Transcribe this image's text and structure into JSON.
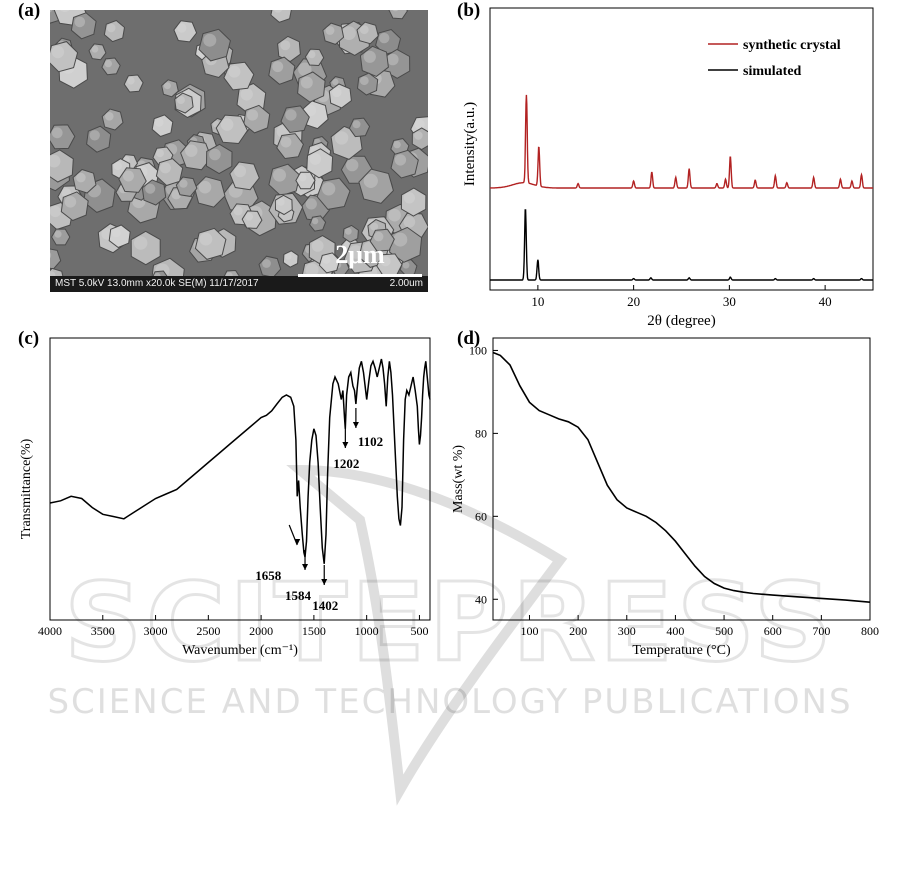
{
  "panels": {
    "a": {
      "label": "(a)",
      "sem_info": "MST 5.0kV 13.0mm x20.0k SE(M) 11/17/2017",
      "scale_small": "2.00um",
      "scale_label": "2μm"
    },
    "b": {
      "label": "(b)"
    },
    "c": {
      "label": "(c)"
    },
    "d": {
      "label": "(d)"
    }
  },
  "watermark": {
    "brand": "SCITEPRESS",
    "subtitle": "SCIENCE AND TECHNOLOGY PUBLICATIONS"
  },
  "chart_data": [
    {
      "panel": "b",
      "type": "line",
      "xlabel": "2θ (degree)",
      "ylabel": "Intensity(a.u.)",
      "xlim": [
        5,
        45
      ],
      "xticks": [
        10,
        20,
        30,
        40
      ],
      "y_ticks_shown": false,
      "legend_position": "top-right",
      "series": [
        {
          "name": "synthetic crystal",
          "color": "#b22222",
          "baseline": 0.18,
          "peaks": [
            [
              8.8,
              1.0
            ],
            [
              10.1,
              0.45
            ],
            [
              14.2,
              0.05
            ],
            [
              20.0,
              0.08
            ],
            [
              21.9,
              0.18
            ],
            [
              24.4,
              0.12
            ],
            [
              25.8,
              0.22
            ],
            [
              28.7,
              0.05
            ],
            [
              29.6,
              0.1
            ],
            [
              30.1,
              0.36
            ],
            [
              32.7,
              0.09
            ],
            [
              34.8,
              0.14
            ],
            [
              36.0,
              0.06
            ],
            [
              38.8,
              0.12
            ],
            [
              41.6,
              0.1
            ],
            [
              42.8,
              0.08
            ],
            [
              43.8,
              0.15
            ]
          ]
        },
        {
          "name": "simulated",
          "color": "#000000",
          "baseline": 0.0,
          "peaks": [
            [
              8.7,
              1.0
            ],
            [
              10.0,
              0.28
            ],
            [
              20.0,
              0.02
            ],
            [
              21.8,
              0.03
            ],
            [
              25.8,
              0.03
            ],
            [
              30.1,
              0.04
            ],
            [
              34.8,
              0.02
            ],
            [
              38.8,
              0.02
            ],
            [
              43.8,
              0.02
            ]
          ]
        }
      ]
    },
    {
      "panel": "c",
      "type": "line",
      "xlabel": "Wavenumber (cm⁻¹)",
      "ylabel": "Transmittance(%)",
      "xlim": [
        4000,
        400
      ],
      "xticks": [
        4000,
        3500,
        3000,
        2500,
        2000,
        1500,
        1000,
        500
      ],
      "y_ticks_shown": false,
      "series": [
        {
          "name": "",
          "x": [
            4000,
            3900,
            3800,
            3700,
            3600,
            3500,
            3400,
            3300,
            3200,
            3100,
            3000,
            2900,
            2800,
            2700,
            2600,
            2500,
            2400,
            2300,
            2200,
            2100,
            2000,
            1950,
            1900,
            1850,
            1800,
            1760,
            1720,
            1690,
            1670,
            1658,
            1645,
            1630,
            1610,
            1595,
            1584,
            1570,
            1555,
            1540,
            1520,
            1500,
            1480,
            1460,
            1440,
            1420,
            1402,
            1385,
            1370,
            1350,
            1320,
            1300,
            1270,
            1240,
            1225,
            1210,
            1202,
            1190,
            1170,
            1150,
            1130,
            1115,
            1102,
            1090,
            1070,
            1050,
            1030,
            1015,
            1000,
            980,
            960,
            940,
            920,
            900,
            880,
            860,
            845,
            830,
            815,
            800,
            785,
            770,
            755,
            740,
            725,
            710,
            695,
            680,
            665,
            650,
            635,
            620,
            600,
            580,
            560,
            540,
            520,
            510,
            500,
            490,
            480,
            470,
            460,
            450,
            440,
            430,
            420,
            410,
            400
          ],
          "y": [
            32,
            33,
            35,
            34,
            30,
            27,
            26,
            25,
            28,
            31,
            34,
            36,
            38,
            42,
            46,
            50,
            54,
            58,
            62,
            66,
            70,
            71,
            73,
            76,
            79,
            80,
            79,
            75,
            60,
            35,
            42,
            30,
            18,
            10,
            8,
            15,
            35,
            50,
            60,
            65,
            62,
            50,
            30,
            12,
            5,
            18,
            45,
            70,
            85,
            88,
            85,
            78,
            82,
            70,
            65,
            80,
            88,
            90,
            84,
            82,
            76,
            83,
            92,
            95,
            90,
            84,
            78,
            86,
            93,
            95,
            92,
            88,
            92,
            96,
            92,
            85,
            75,
            88,
            95,
            90,
            80,
            65,
            50,
            35,
            25,
            22,
            30,
            60,
            78,
            82,
            80,
            84,
            88,
            82,
            75,
            65,
            58,
            62,
            70,
            80,
            88,
            92,
            95,
            90,
            85,
            80,
            78
          ]
        }
      ],
      "annotations": [
        {
          "text": "1658",
          "x": 1658
        },
        {
          "text": "1584",
          "x": 1584
        },
        {
          "text": "1402",
          "x": 1402
        },
        {
          "text": "1202",
          "x": 1202
        },
        {
          "text": "1102",
          "x": 1102
        }
      ]
    },
    {
      "panel": "d",
      "type": "line",
      "xlabel": "Temperature (°C)",
      "ylabel": "Mass(wt %)",
      "xlim": [
        25,
        800
      ],
      "ylim": [
        35,
        103
      ],
      "xticks": [
        100,
        200,
        300,
        400,
        500,
        600,
        700,
        800
      ],
      "yticks": [
        40,
        60,
        80,
        100
      ],
      "series": [
        {
          "name": "",
          "x": [
            25,
            40,
            60,
            80,
            100,
            120,
            140,
            160,
            180,
            200,
            220,
            240,
            260,
            280,
            300,
            320,
            340,
            360,
            380,
            400,
            420,
            440,
            460,
            480,
            500,
            520,
            540,
            560,
            600,
            650,
            700,
            750,
            800
          ],
          "y": [
            99.5,
            98.8,
            96.5,
            91.5,
            87.5,
            85.5,
            84.5,
            83.5,
            82.8,
            81.5,
            78.5,
            73.0,
            67.5,
            64.0,
            62.0,
            61.0,
            60.0,
            58.5,
            56.5,
            54.0,
            51.0,
            48.0,
            45.5,
            43.8,
            42.7,
            42.1,
            41.7,
            41.4,
            41.0,
            40.6,
            40.2,
            39.8,
            39.3
          ]
        }
      ]
    }
  ]
}
